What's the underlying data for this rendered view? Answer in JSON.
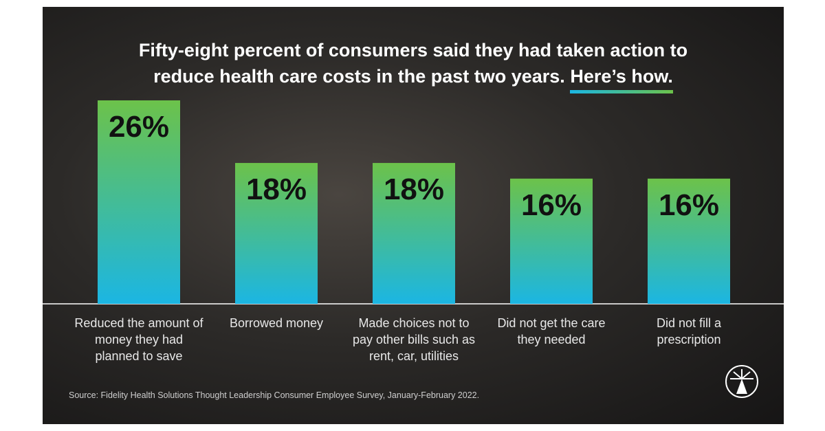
{
  "chart_data": {
    "type": "bar",
    "title": "Fifty-eight percent of consumers said they had taken action to reduce health care costs in the past two years.",
    "title_highlight": "Here’s how.",
    "categories": [
      "Reduced the amount of money they had planned to save",
      "Borrowed money",
      "Made choices not to pay other bills such as rent, car, utilities",
      "Did not get the care they needed",
      "Did not fill a prescription"
    ],
    "values": [
      26,
      18,
      18,
      16,
      16
    ],
    "value_labels": [
      "26%",
      "18%",
      "18%",
      "16%",
      "16%"
    ],
    "colors": [
      "#6cc24a",
      "#1bb6e3"
    ],
    "source": "Source: Fidelity Health Solutions Thought Leadership Consumer Employee Survey, January-February 2022."
  }
}
